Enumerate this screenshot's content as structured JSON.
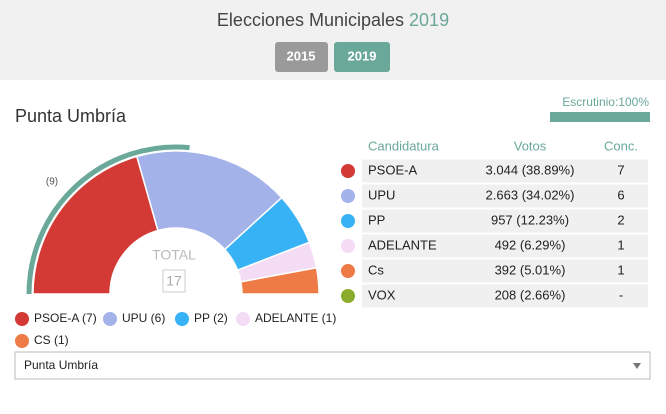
{
  "header": {
    "title": "Elecciones Municipales",
    "year": "2019",
    "buttons": [
      "2015",
      "2019"
    ]
  },
  "municipality": "Punta Umbría",
  "scrutiny": {
    "label": "Escrutinio:100%",
    "value": 100
  },
  "chart_data": {
    "type": "pie",
    "half": true,
    "categories": [
      "PSOE-A (7)",
      "UPU (6)",
      "PP (2)",
      "ADELANTE (1)",
      "CS (1)"
    ],
    "values": [
      7,
      6,
      2,
      1,
      1
    ],
    "colors": [
      "#d43a35",
      "#a3b3ea",
      "#36b2f5",
      "#f4dcf5",
      "#ee7a45"
    ],
    "total_label": "TOTAL",
    "total": 17,
    "majority_label": "(9)",
    "majority": 9
  },
  "table": {
    "columns": [
      "Candidatura",
      "Votos",
      "Conc."
    ],
    "rows": [
      [
        "PSOE-A",
        "3.044 (38.89%)",
        "7"
      ],
      [
        "UPU",
        "2.663 (34.02%)",
        "6"
      ],
      [
        "PP",
        "957 (12.23%)",
        "2"
      ],
      [
        "ADELANTE",
        "492 (6.29%)",
        "1"
      ],
      [
        "Cs",
        "392 (5.01%)",
        "1"
      ],
      [
        "VOX",
        "208 (2.66%)",
        "-"
      ]
    ],
    "colors": [
      "#d43a35",
      "#a3b3ea",
      "#36b2f5",
      "#f4dcf5",
      "#ee7a45",
      "#8aac2a"
    ]
  },
  "select": "Punta Umbría"
}
